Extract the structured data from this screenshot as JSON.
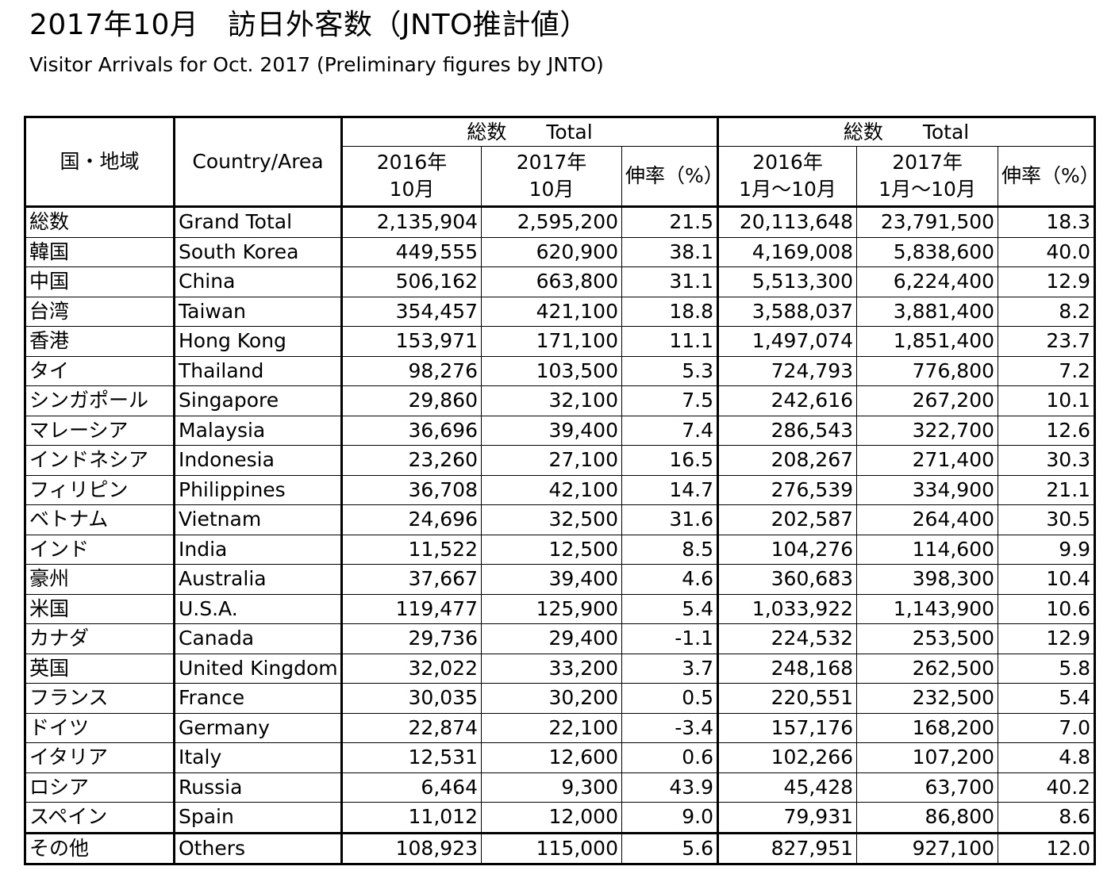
{
  "title": "2017年10月　訪日外客数（JNTO推計値）",
  "subtitle": "Visitor Arrivals for Oct. 2017 (Preliminary figures by JNTO)",
  "headers": {
    "country_jp": "国・地域",
    "country_en": "Country/Area",
    "group1": "総数　　Total",
    "group2": "総数　　Total",
    "c2016_oct_l1": "2016年",
    "c2016_oct_l2": "10月",
    "c2017_oct_l1": "2017年",
    "c2017_oct_l2": "10月",
    "growth1": "伸率（%）",
    "c2016_ytd_l1": "2016年",
    "c2016_ytd_l2": "1月～10月",
    "c2017_ytd_l1": "2017年",
    "c2017_ytd_l2": "1月～10月",
    "growth2": "伸率（%）"
  },
  "rows": [
    {
      "jp": "総数",
      "en": "Grand Total",
      "v2016": "2,135,904",
      "v2017": "2,595,200",
      "g": "21.5",
      "y2016": "20,113,648",
      "y2017": "23,791,500",
      "yg": "18.3"
    },
    {
      "jp": "韓国",
      "en": "South Korea",
      "v2016": "449,555",
      "v2017": "620,900",
      "g": "38.1",
      "y2016": "4,169,008",
      "y2017": "5,838,600",
      "yg": "40.0"
    },
    {
      "jp": "中国",
      "en": "China",
      "v2016": "506,162",
      "v2017": "663,800",
      "g": "31.1",
      "y2016": "5,513,300",
      "y2017": "6,224,400",
      "yg": "12.9"
    },
    {
      "jp": "台湾",
      "en": "Taiwan",
      "v2016": "354,457",
      "v2017": "421,100",
      "g": "18.8",
      "y2016": "3,588,037",
      "y2017": "3,881,400",
      "yg": "8.2"
    },
    {
      "jp": "香港",
      "en": "Hong Kong",
      "v2016": "153,971",
      "v2017": "171,100",
      "g": "11.1",
      "y2016": "1,497,074",
      "y2017": "1,851,400",
      "yg": "23.7"
    },
    {
      "jp": "タイ",
      "en": "Thailand",
      "v2016": "98,276",
      "v2017": "103,500",
      "g": "5.3",
      "y2016": "724,793",
      "y2017": "776,800",
      "yg": "7.2"
    },
    {
      "jp": "シンガポール",
      "en": "Singapore",
      "v2016": "29,860",
      "v2017": "32,100",
      "g": "7.5",
      "y2016": "242,616",
      "y2017": "267,200",
      "yg": "10.1"
    },
    {
      "jp": "マレーシア",
      "en": "Malaysia",
      "v2016": "36,696",
      "v2017": "39,400",
      "g": "7.4",
      "y2016": "286,543",
      "y2017": "322,700",
      "yg": "12.6"
    },
    {
      "jp": "インドネシア",
      "en": "Indonesia",
      "v2016": "23,260",
      "v2017": "27,100",
      "g": "16.5",
      "y2016": "208,267",
      "y2017": "271,400",
      "yg": "30.3"
    },
    {
      "jp": "フィリピン",
      "en": "Philippines",
      "v2016": "36,708",
      "v2017": "42,100",
      "g": "14.7",
      "y2016": "276,539",
      "y2017": "334,900",
      "yg": "21.1"
    },
    {
      "jp": "ベトナム",
      "en": "Vietnam",
      "v2016": "24,696",
      "v2017": "32,500",
      "g": "31.6",
      "y2016": "202,587",
      "y2017": "264,400",
      "yg": "30.5"
    },
    {
      "jp": "インド",
      "en": "India",
      "v2016": "11,522",
      "v2017": "12,500",
      "g": "8.5",
      "y2016": "104,276",
      "y2017": "114,600",
      "yg": "9.9"
    },
    {
      "jp": "豪州",
      "en": "Australia",
      "v2016": "37,667",
      "v2017": "39,400",
      "g": "4.6",
      "y2016": "360,683",
      "y2017": "398,300",
      "yg": "10.4"
    },
    {
      "jp": "米国",
      "en": "U.S.A.",
      "v2016": "119,477",
      "v2017": "125,900",
      "g": "5.4",
      "y2016": "1,033,922",
      "y2017": "1,143,900",
      "yg": "10.6"
    },
    {
      "jp": "カナダ",
      "en": "Canada",
      "v2016": "29,736",
      "v2017": "29,400",
      "g": "-1.1",
      "y2016": "224,532",
      "y2017": "253,500",
      "yg": "12.9"
    },
    {
      "jp": "英国",
      "en": "United Kingdom",
      "v2016": "32,022",
      "v2017": "33,200",
      "g": "3.7",
      "y2016": "248,168",
      "y2017": "262,500",
      "yg": "5.8"
    },
    {
      "jp": "フランス",
      "en": "France",
      "v2016": "30,035",
      "v2017": "30,200",
      "g": "0.5",
      "y2016": "220,551",
      "y2017": "232,500",
      "yg": "5.4"
    },
    {
      "jp": "ドイツ",
      "en": "Germany",
      "v2016": "22,874",
      "v2017": "22,100",
      "g": "-3.4",
      "y2016": "157,176",
      "y2017": "168,200",
      "yg": "7.0"
    },
    {
      "jp": "イタリア",
      "en": "Italy",
      "v2016": "12,531",
      "v2017": "12,600",
      "g": "0.6",
      "y2016": "102,266",
      "y2017": "107,200",
      "yg": "4.8"
    },
    {
      "jp": "ロシア",
      "en": "Russia",
      "v2016": "6,464",
      "v2017": "9,300",
      "g": "43.9",
      "y2016": "45,428",
      "y2017": "63,700",
      "yg": "40.2"
    },
    {
      "jp": "スペイン",
      "en": "Spain",
      "v2016": "11,012",
      "v2017": "12,000",
      "g": "9.0",
      "y2016": "79,931",
      "y2017": "86,800",
      "yg": "8.6"
    },
    {
      "jp": "その他",
      "en": "Others",
      "v2016": "108,923",
      "v2017": "115,000",
      "g": "5.6",
      "y2016": "827,951",
      "y2017": "927,100",
      "yg": "12.0"
    }
  ]
}
